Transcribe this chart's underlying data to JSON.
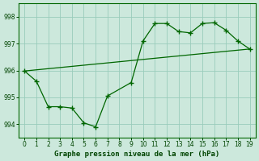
{
  "title": "Graphe pression niveau de la mer (hPa)",
  "xlim": [
    -0.5,
    19.5
  ],
  "ylim": [
    993.5,
    998.5
  ],
  "yticks": [
    994,
    995,
    996,
    997,
    998
  ],
  "xticks": [
    0,
    1,
    2,
    3,
    4,
    5,
    6,
    7,
    8,
    9,
    10,
    11,
    12,
    13,
    14,
    15,
    16,
    17,
    18,
    19
  ],
  "line1_x": [
    0,
    1,
    2,
    3,
    4,
    5,
    6,
    7,
    9,
    10,
    11,
    12,
    13,
    14,
    15,
    16,
    17,
    18,
    19
  ],
  "line1_y": [
    995.98,
    995.6,
    994.65,
    994.65,
    994.6,
    994.05,
    993.9,
    995.05,
    995.55,
    997.1,
    997.75,
    997.75,
    997.45,
    997.4,
    997.75,
    997.78,
    997.5,
    997.1,
    996.8
  ],
  "line2_x": [
    0,
    19
  ],
  "line2_y": [
    995.98,
    996.8
  ],
  "line_color": "#006600",
  "bg_color": "#cce8dc",
  "grid_color": "#99ccbb",
  "title_color": "#004400",
  "tick_color": "#004400"
}
